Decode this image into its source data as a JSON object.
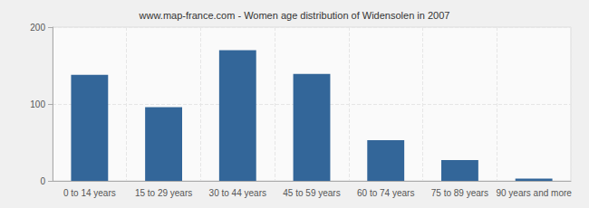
{
  "chart_data": {
    "type": "bar",
    "title": "www.map-france.com - Women age distribution of Widensolen in 2007",
    "categories": [
      "0 to 14 years",
      "15 to 29 years",
      "30 to 44 years",
      "45 to 59 years",
      "60 to 74 years",
      "75 to 89 years",
      "90 years and more"
    ],
    "values": [
      138,
      96,
      170,
      139,
      53,
      27,
      3
    ],
    "color": "#336699",
    "ylim": [
      0,
      200
    ],
    "yticks": [
      0,
      100,
      200
    ],
    "grid": true
  }
}
